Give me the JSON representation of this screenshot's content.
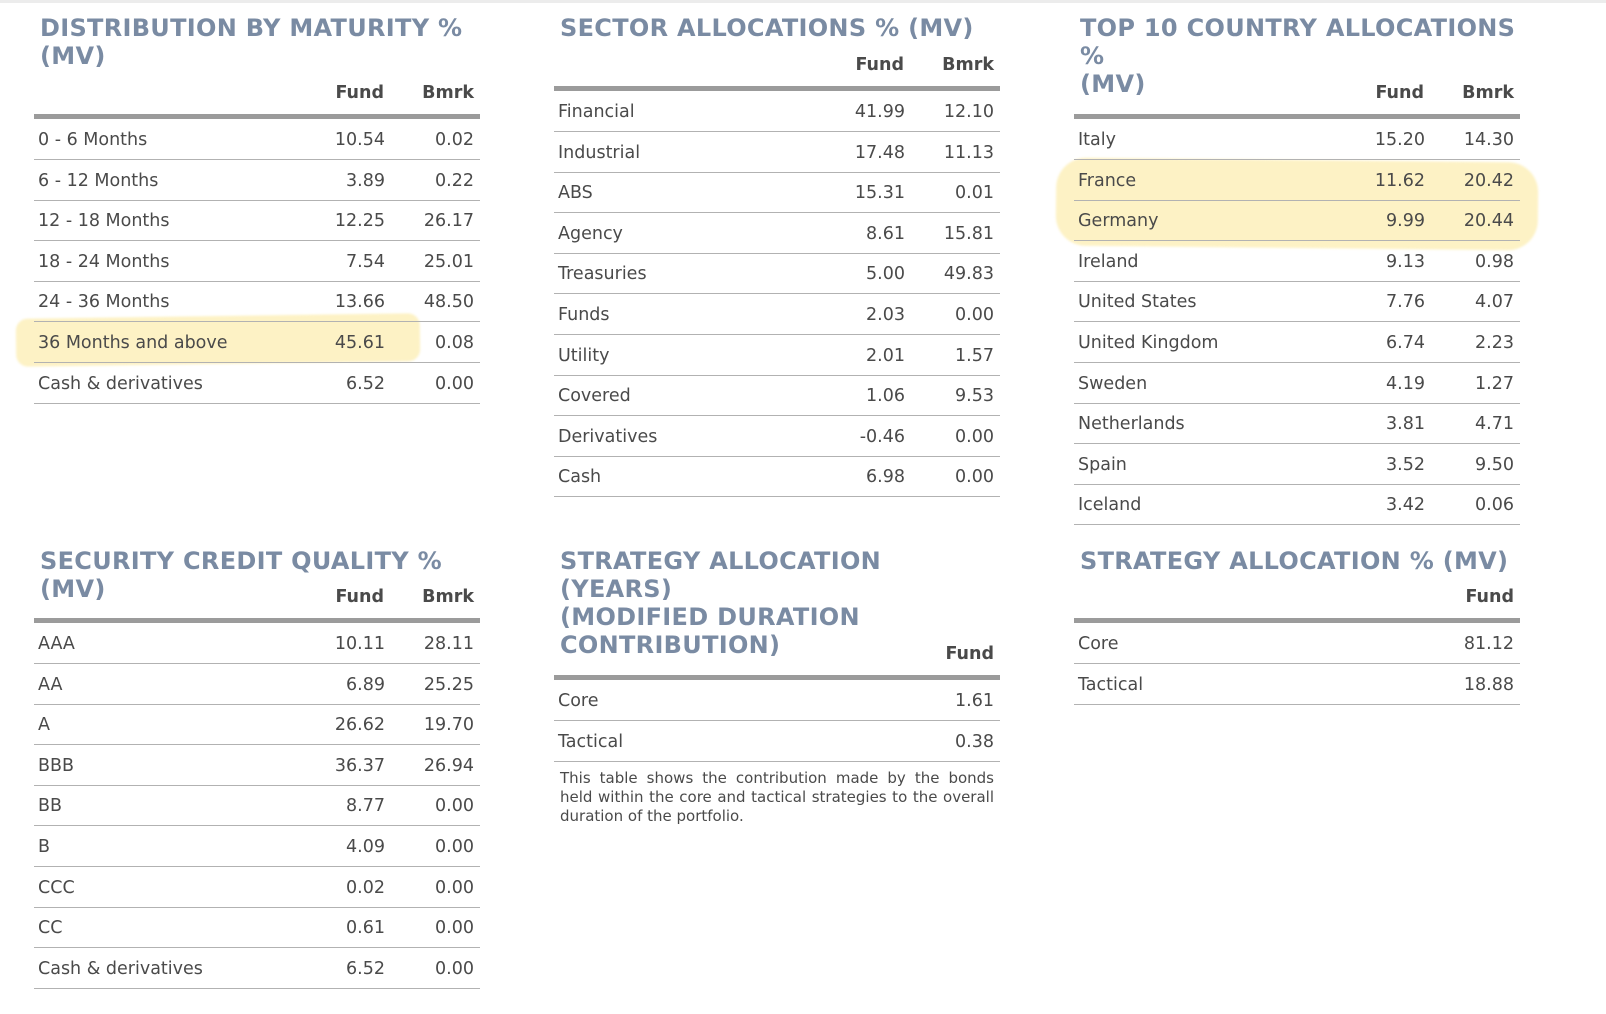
{
  "maturity": {
    "title_line1": "DISTRIBUTION BY MATURITY %",
    "title_line2": "(MV)",
    "fund_header": "Fund",
    "bmrk_header": "Bmrk",
    "rows": [
      {
        "label": "0 - 6 Months",
        "fund": "10.54",
        "bmrk": "0.02"
      },
      {
        "label": "6 - 12 Months",
        "fund": "3.89",
        "bmrk": "0.22"
      },
      {
        "label": "12 - 18 Months",
        "fund": "12.25",
        "bmrk": "26.17"
      },
      {
        "label": "18 - 24 Months",
        "fund": "7.54",
        "bmrk": "25.01"
      },
      {
        "label": "24 - 36 Months",
        "fund": "13.66",
        "bmrk": "48.50"
      },
      {
        "label": "36 Months and above",
        "fund": "45.61",
        "bmrk": "0.08"
      },
      {
        "label": "Cash & derivatives",
        "fund": "6.52",
        "bmrk": "0.00"
      }
    ]
  },
  "sector": {
    "title_line1": "SECTOR ALLOCATIONS % (MV)",
    "fund_header": "Fund",
    "bmrk_header": "Bmrk",
    "rows": [
      {
        "label": "Financial",
        "fund": "41.99",
        "bmrk": "12.10"
      },
      {
        "label": "Industrial",
        "fund": "17.48",
        "bmrk": "11.13"
      },
      {
        "label": "ABS",
        "fund": "15.31",
        "bmrk": "0.01"
      },
      {
        "label": "Agency",
        "fund": "8.61",
        "bmrk": "15.81"
      },
      {
        "label": "Treasuries",
        "fund": "5.00",
        "bmrk": "49.83"
      },
      {
        "label": "Funds",
        "fund": "2.03",
        "bmrk": "0.00"
      },
      {
        "label": "Utility",
        "fund": "2.01",
        "bmrk": "1.57"
      },
      {
        "label": "Covered",
        "fund": "1.06",
        "bmrk": "9.53"
      },
      {
        "label": "Derivatives",
        "fund": "-0.46",
        "bmrk": "0.00"
      },
      {
        "label": "Cash",
        "fund": "6.98",
        "bmrk": "0.00"
      }
    ]
  },
  "country": {
    "title_line1": "TOP 10 COUNTRY ALLOCATIONS %",
    "title_line2": "(MV)",
    "fund_header": "Fund",
    "bmrk_header": "Bmrk",
    "rows": [
      {
        "label": "Italy",
        "fund": "15.20",
        "bmrk": "14.30"
      },
      {
        "label": "France",
        "fund": "11.62",
        "bmrk": "20.42"
      },
      {
        "label": "Germany",
        "fund": "9.99",
        "bmrk": "20.44"
      },
      {
        "label": "Ireland",
        "fund": "9.13",
        "bmrk": "0.98"
      },
      {
        "label": "United States",
        "fund": "7.76",
        "bmrk": "4.07"
      },
      {
        "label": "United Kingdom",
        "fund": "6.74",
        "bmrk": "2.23"
      },
      {
        "label": "Sweden",
        "fund": "4.19",
        "bmrk": "1.27"
      },
      {
        "label": "Netherlands",
        "fund": "3.81",
        "bmrk": "4.71"
      },
      {
        "label": "Spain",
        "fund": "3.52",
        "bmrk": "9.50"
      },
      {
        "label": "Iceland",
        "fund": "3.42",
        "bmrk": "0.06"
      }
    ]
  },
  "credit": {
    "title_line1": "SECURITY CREDIT QUALITY % (MV)",
    "fund_header": "Fund",
    "bmrk_header": "Bmrk",
    "rows": [
      {
        "label": "AAA",
        "fund": "10.11",
        "bmrk": "28.11"
      },
      {
        "label": "AA",
        "fund": "6.89",
        "bmrk": "25.25"
      },
      {
        "label": "A",
        "fund": "26.62",
        "bmrk": "19.70"
      },
      {
        "label": "BBB",
        "fund": "36.37",
        "bmrk": "26.94"
      },
      {
        "label": "BB",
        "fund": "8.77",
        "bmrk": "0.00"
      },
      {
        "label": "B",
        "fund": "4.09",
        "bmrk": "0.00"
      },
      {
        "label": "CCC",
        "fund": "0.02",
        "bmrk": "0.00"
      },
      {
        "label": "CC",
        "fund": "0.61",
        "bmrk": "0.00"
      },
      {
        "label": "Cash & derivatives",
        "fund": "6.52",
        "bmrk": "0.00"
      }
    ]
  },
  "strategy_years": {
    "title_line1": "STRATEGY ALLOCATION (YEARS)",
    "title_line2": "(MODIFIED DURATION",
    "title_line3": "CONTRIBUTION)",
    "fund_header": "Fund",
    "rows": [
      {
        "label": "Core",
        "fund": "1.61"
      },
      {
        "label": "Tactical",
        "fund": "0.38"
      }
    ],
    "footnote": "This table shows the contribution made by the bonds held within the core and tactical strategies to the overall duration of the portfolio."
  },
  "strategy_mv": {
    "title_line1": "STRATEGY ALLOCATION % (MV)",
    "fund_header": "Fund",
    "rows": [
      {
        "label": "Core",
        "fund": "81.12"
      },
      {
        "label": "Tactical",
        "fund": "18.88"
      }
    ]
  },
  "highlights": {
    "color": "#fce896",
    "highlighted_rows": [
      "36 Months and above",
      "France",
      "Germany"
    ]
  }
}
